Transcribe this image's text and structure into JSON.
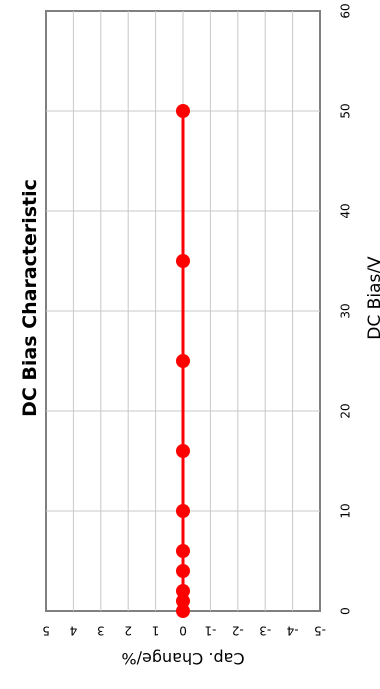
{
  "chart_data": {
    "type": "line",
    "title": "DC Bias Characteristic",
    "xlabel": "DC Bias/V",
    "ylabel": "Cap. Change/%",
    "x": [
      0,
      1,
      2,
      4,
      6,
      10,
      16,
      25,
      35,
      50
    ],
    "series": [
      {
        "values": [
          0,
          0,
          0,
          0,
          0,
          0,
          0,
          0,
          0,
          0
        ]
      }
    ],
    "xlim": [
      0,
      60
    ],
    "ylim": [
      -5,
      5
    ],
    "xticks": [
      "0",
      "10",
      "20",
      "30",
      "40",
      "50",
      "60"
    ],
    "yticks": [
      "5",
      "4",
      "3",
      "2",
      "1",
      "0",
      "-1",
      "-2",
      "-3",
      "-4",
      "-5"
    ],
    "grid": true,
    "orientation": "rotated-90",
    "series_color": "#ff0000"
  }
}
